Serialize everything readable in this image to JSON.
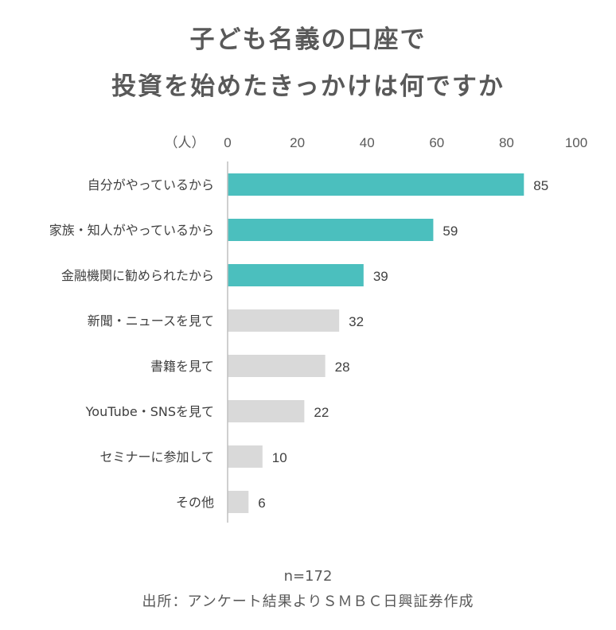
{
  "header": {
    "title_line1": "子ども名義の口座で",
    "title_line2": "投資を始めたきっかけは何ですか"
  },
  "chart_data": {
    "type": "bar",
    "orientation": "horizontal",
    "unit_label": "（人）",
    "xlim": [
      0,
      100
    ],
    "x_ticks": [
      "0",
      "20",
      "40",
      "60",
      "80",
      "100"
    ],
    "grid": false,
    "categories": [
      "自分がやっているから",
      "家族・知人がやっているから",
      "金融機関に勧められたから",
      "新聞・ニュースを見て",
      "書籍を見て",
      "YouTube・SNSを見て",
      "セミナーに参加して",
      "その他"
    ],
    "values": [
      85,
      59,
      39,
      32,
      28,
      22,
      10,
      6
    ],
    "highlighted": [
      true,
      true,
      true,
      false,
      false,
      false,
      false,
      false
    ],
    "colors": {
      "highlight": "#4bbfbe",
      "normal": "#d9d9d9",
      "axis": "#bfbfbf"
    }
  },
  "footer": {
    "sample": "n=172",
    "source": "出所：アンケート結果よりＳＭＢＣ日興証券作成"
  }
}
